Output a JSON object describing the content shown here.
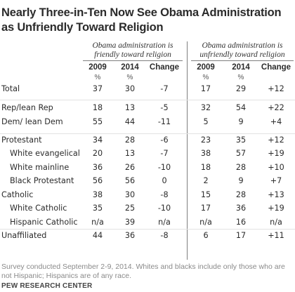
{
  "title": "Nearly Three-in-Ten Now See Obama Administration as Unfriendly Toward Religion",
  "chart_data": {
    "type": "table",
    "groups": [
      {
        "label": "Obama administration is friendly toward religion",
        "columns": [
          "2009",
          "2014",
          "Change"
        ]
      },
      {
        "label": "Obama administration is unfriendly toward religion",
        "columns": [
          "2009",
          "2014",
          "Change"
        ]
      }
    ],
    "unit": "%",
    "rows": [
      {
        "label": "Total",
        "values": [
          "37",
          "30",
          "-7",
          "17",
          "29",
          "+12"
        ]
      },
      {
        "label": "Rep/lean Rep",
        "values": [
          "18",
          "13",
          "-5",
          "32",
          "54",
          "+22"
        ]
      },
      {
        "label": "Dem/ lean Dem",
        "values": [
          "55",
          "44",
          "-11",
          "5",
          "9",
          "+4"
        ]
      },
      {
        "label": "Protestant",
        "values": [
          "34",
          "28",
          "-6",
          "23",
          "35",
          "+12"
        ]
      },
      {
        "label": "White evangelical",
        "values": [
          "20",
          "13",
          "-7",
          "38",
          "57",
          "+19"
        ]
      },
      {
        "label": "White mainline",
        "values": [
          "36",
          "26",
          "-10",
          "18",
          "28",
          "+10"
        ]
      },
      {
        "label": "Black Protestant",
        "values": [
          "56",
          "56",
          "0",
          "2",
          "9",
          "+7"
        ]
      },
      {
        "label": "Catholic",
        "values": [
          "38",
          "30",
          "-8",
          "15",
          "28",
          "+13"
        ]
      },
      {
        "label": "White Catholic",
        "values": [
          "35",
          "25",
          "-10",
          "17",
          "36",
          "+19"
        ]
      },
      {
        "label": "Hispanic Catholic",
        "values": [
          "n/a",
          "39",
          "n/a",
          "n/a",
          "16",
          "n/a"
        ]
      },
      {
        "label": "Unaffiliated",
        "values": [
          "44",
          "36",
          "-8",
          "6",
          "17",
          "+11"
        ]
      }
    ],
    "note": "Survey conducted September 2-9, 2014. Whites and blacks include only those who are not Hispanic; Hispanics are of any race.",
    "source": "PEW RESEARCH CENTER"
  }
}
